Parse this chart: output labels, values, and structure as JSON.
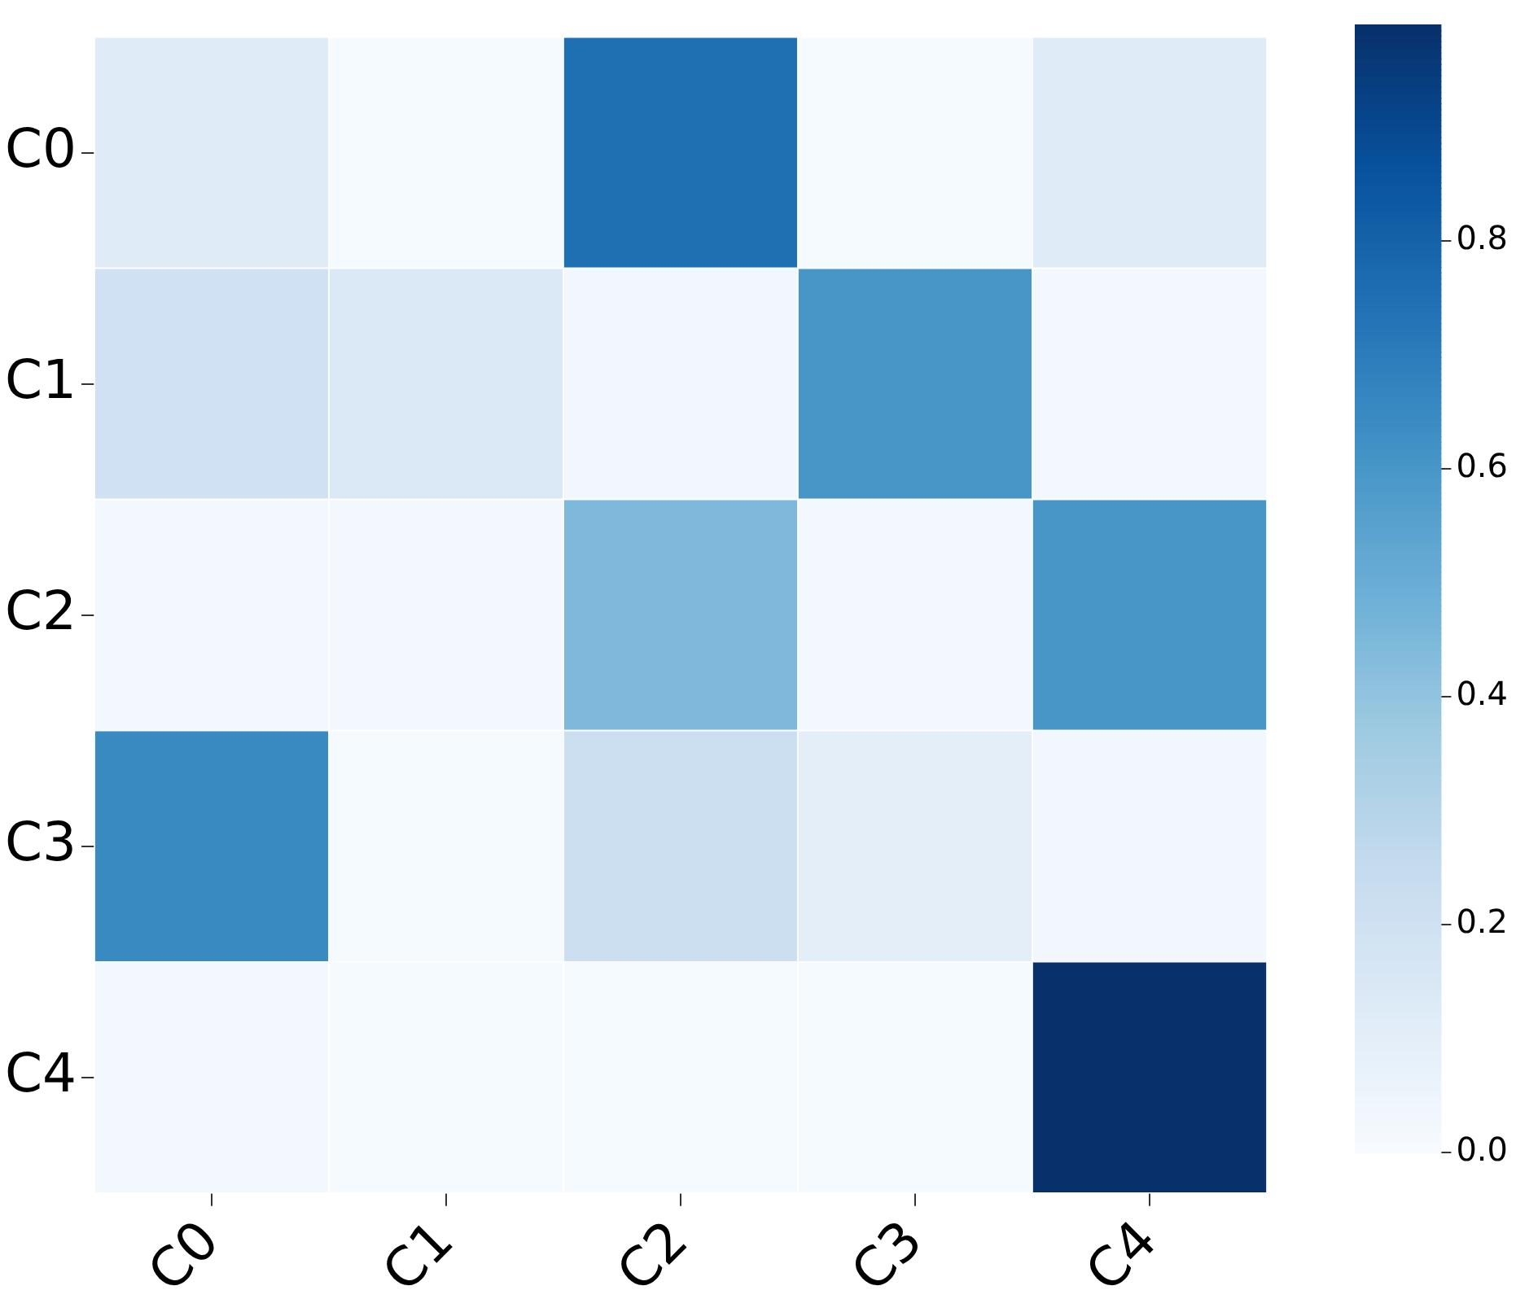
{
  "chart_data": {
    "type": "heatmap",
    "categories": [
      "C0",
      "C1",
      "C2",
      "C3",
      "C4"
    ],
    "y_categories": [
      "C0",
      "C1",
      "C2",
      "C3",
      "C4"
    ],
    "cells": [
      [
        0.12,
        0.01,
        0.75,
        0.01,
        0.12
      ],
      [
        0.2,
        0.14,
        0.03,
        0.6,
        0.02
      ],
      [
        0.02,
        0.02,
        0.45,
        0.02,
        0.6
      ],
      [
        0.65,
        0.01,
        0.22,
        0.1,
        0.03
      ],
      [
        0.02,
        0.01,
        0.01,
        0.01,
        0.99
      ]
    ],
    "clim": [
      0,
      0.99
    ],
    "cticks": [
      {
        "value": 0,
        "label": "0.0"
      },
      {
        "value": 0.2,
        "label": "0.2"
      },
      {
        "value": 0.4,
        "label": "0.4"
      },
      {
        "value": 0.6,
        "label": "0.6"
      },
      {
        "value": 0.8,
        "label": "0.8"
      }
    ]
  }
}
